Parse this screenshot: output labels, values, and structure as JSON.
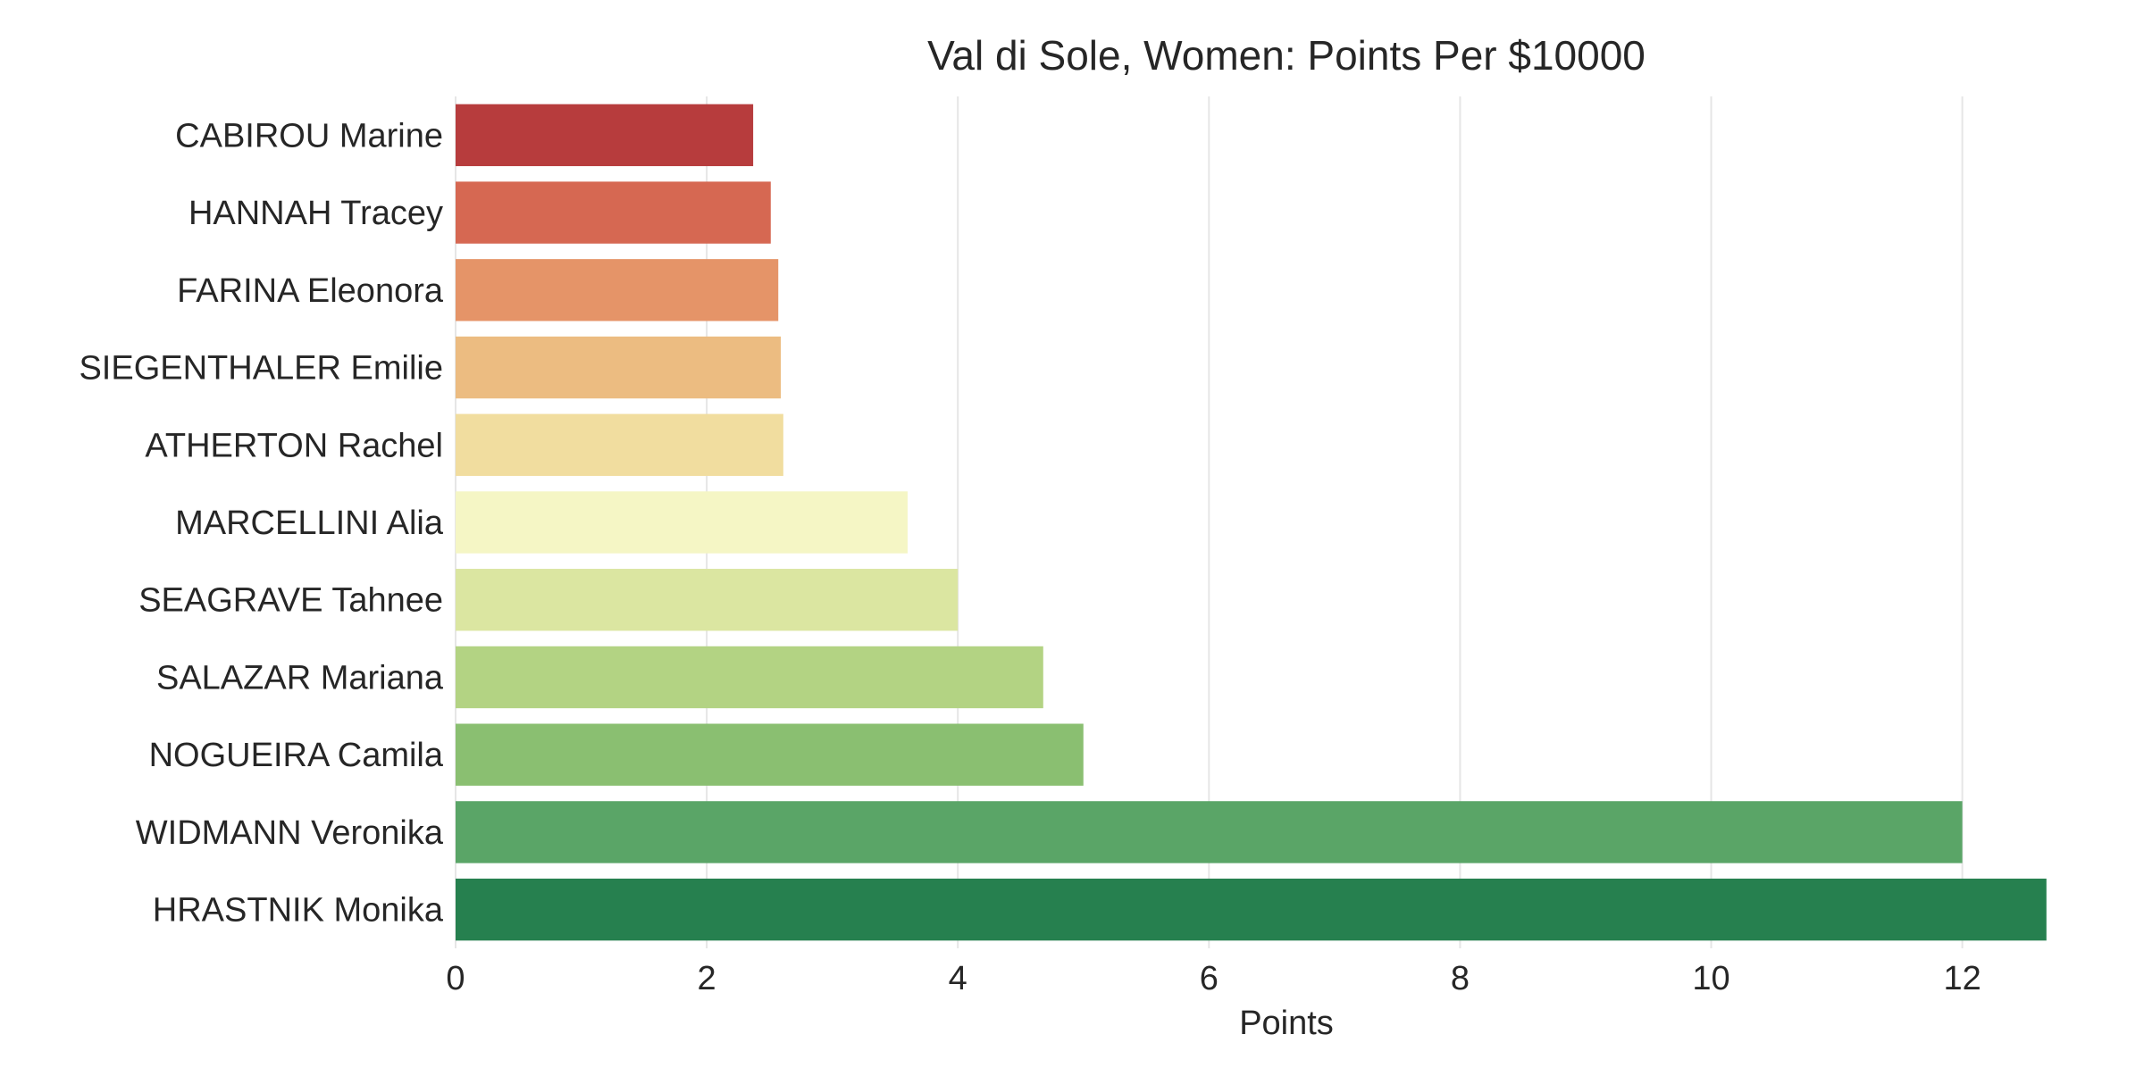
{
  "chart_data": {
    "type": "bar",
    "orientation": "horizontal",
    "title": "Val di Sole, Women: Points Per $10000",
    "xlabel": "Points",
    "ylabel": "",
    "xlim": [
      0,
      12.7
    ],
    "xticks": [
      0,
      2,
      4,
      6,
      8,
      10,
      12
    ],
    "grid": "vertical",
    "legend": "none",
    "categories": [
      "CABIROU Marine",
      "HANNAH Tracey",
      "FARINA Eleonora",
      "SIEGENTHALER Emilie",
      "ATHERTON Rachel",
      "MARCELLINI Alia",
      "SEAGRAVE Tahnee",
      "SALAZAR Mariana",
      "NOGUEIRA Camila",
      "WIDMANN Veronika",
      "HRASTNIK Monika"
    ],
    "values": [
      2.37,
      2.51,
      2.57,
      2.59,
      2.61,
      3.6,
      4.0,
      4.68,
      5.0,
      12.0,
      12.67
    ],
    "colors": [
      "#b73c3d",
      "#d66852",
      "#e59468",
      "#ecbc81",
      "#f1dd9f",
      "#f5f6c5",
      "#dbe6a1",
      "#b3d383",
      "#8abf71",
      "#5aa567",
      "#26804f"
    ]
  }
}
